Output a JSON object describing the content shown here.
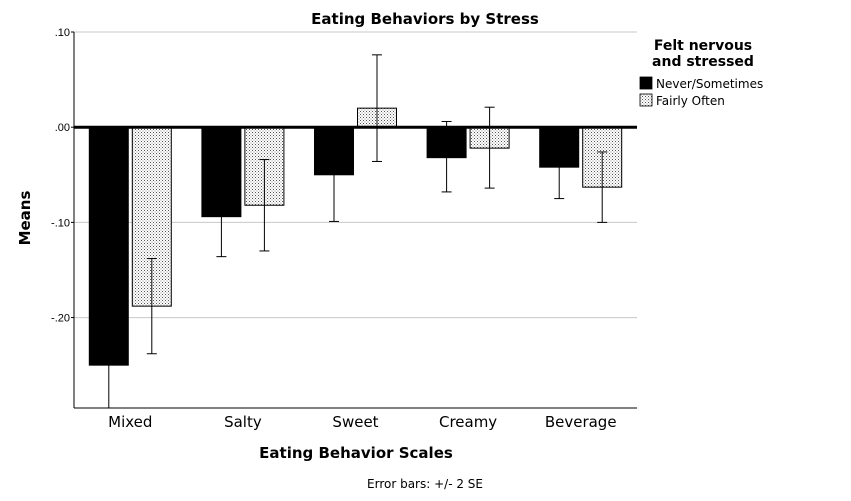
{
  "chart_data": {
    "type": "bar",
    "title": "Eating Behaviors by Stress",
    "xlabel": "Eating Behavior Scales",
    "ylabel": "Means",
    "ylim": [
      -0.295,
      0.1
    ],
    "yticks": [
      0.1,
      0.0,
      -0.1,
      -0.2
    ],
    "ytick_labels": [
      ".10",
      ".00",
      "-.10",
      "-.20"
    ],
    "grid": true,
    "categories": [
      "Mixed",
      "Salty",
      "Sweet",
      "Creamy",
      "Beverage"
    ],
    "legend": {
      "title_lines": [
        "Felt nervous",
        "and stressed"
      ],
      "placement": "right"
    },
    "series": [
      {
        "name": "Never/Sometimes",
        "fill": "solid",
        "color": "#000000",
        "values": [
          -0.25,
          -0.094,
          -0.05,
          -0.032,
          -0.042
        ],
        "err_low": [
          -0.3,
          -0.136,
          -0.099,
          -0.068,
          -0.075
        ],
        "err_high": [
          -0.2,
          -0.052,
          -0.001,
          0.006,
          -0.009
        ]
      },
      {
        "name": "Fairly Often",
        "fill": "dotted",
        "color": "#ffffff",
        "values": [
          -0.188,
          -0.082,
          0.02,
          -0.022,
          -0.063
        ],
        "err_low": [
          -0.238,
          -0.13,
          -0.036,
          -0.064,
          -0.1
        ],
        "err_high": [
          -0.138,
          -0.034,
          0.076,
          0.021,
          -0.026
        ]
      }
    ],
    "footnote": "Error bars: +/- 2 SE"
  }
}
